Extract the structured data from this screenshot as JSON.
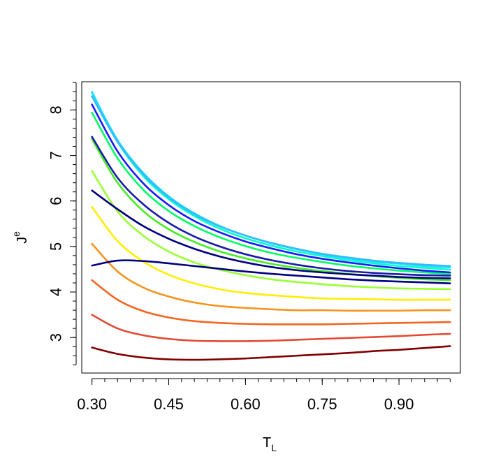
{
  "chart_data": {
    "type": "line",
    "title": "",
    "xlabel": {
      "main": "T",
      "sub": "L"
    },
    "ylabel": {
      "main": "J",
      "sup": "e"
    },
    "xlim": [
      0.28,
      1.02
    ],
    "ylim": [
      2.22,
      8.62
    ],
    "x_ticks": [
      "0.30",
      "0.45",
      "0.60",
      "0.75",
      "0.90"
    ],
    "x_tick_values": [
      0.3,
      0.45,
      0.6,
      0.75,
      0.9
    ],
    "x_minor_step": 0.025,
    "y_ticks": [
      "3",
      "4",
      "5",
      "6",
      "7",
      "8"
    ],
    "y_tick_values": [
      3,
      4,
      5,
      6,
      7,
      8
    ],
    "y_minor_step": 0.2,
    "grid": false,
    "legend": "none",
    "x": [
      0.3,
      0.35,
      0.4,
      0.45,
      0.5,
      0.55,
      0.6,
      0.65,
      0.7,
      0.75,
      0.8,
      0.85,
      0.9,
      0.95,
      1.0
    ],
    "series": [
      {
        "color": "#800000",
        "values": [
          2.78,
          2.64,
          2.56,
          2.52,
          2.51,
          2.52,
          2.54,
          2.57,
          2.6,
          2.63,
          2.66,
          2.7,
          2.73,
          2.77,
          2.81
        ]
      },
      {
        "color": "#e34a33",
        "values": [
          3.5,
          3.2,
          3.05,
          2.97,
          2.93,
          2.92,
          2.92,
          2.93,
          2.95,
          2.97,
          2.99,
          3.01,
          3.03,
          3.06,
          3.08
        ]
      },
      {
        "color": "#f26522",
        "values": [
          4.26,
          3.83,
          3.58,
          3.44,
          3.36,
          3.32,
          3.3,
          3.29,
          3.29,
          3.29,
          3.3,
          3.31,
          3.32,
          3.33,
          3.34
        ]
      },
      {
        "color": "#f7941d",
        "values": [
          5.06,
          4.45,
          4.1,
          3.9,
          3.77,
          3.69,
          3.65,
          3.62,
          3.6,
          3.6,
          3.59,
          3.59,
          3.59,
          3.6,
          3.6
        ]
      },
      {
        "color": "#ffee00",
        "values": [
          5.87,
          5.12,
          4.67,
          4.38,
          4.19,
          4.06,
          3.98,
          3.93,
          3.89,
          3.86,
          3.85,
          3.84,
          3.83,
          3.83,
          3.83
        ]
      },
      {
        "color": "#99ff33",
        "values": [
          6.66,
          5.77,
          5.24,
          4.89,
          4.65,
          4.49,
          4.37,
          4.28,
          4.22,
          4.17,
          4.13,
          4.1,
          4.08,
          4.07,
          4.06
        ]
      },
      {
        "color": "#44ee22",
        "values": [
          7.36,
          6.4,
          5.78,
          5.38,
          5.1,
          4.89,
          4.74,
          4.62,
          4.53,
          4.46,
          4.4,
          4.35,
          4.31,
          4.28,
          4.26
        ]
      },
      {
        "color": "#00ff66",
        "values": [
          7.94,
          6.94,
          6.25,
          5.78,
          5.45,
          5.2,
          5.01,
          4.86,
          4.75,
          4.66,
          4.58,
          4.52,
          4.47,
          4.43,
          4.4
        ]
      },
      {
        "color": "#00ffcc",
        "values": [
          8.4,
          7.3,
          6.55,
          6.04,
          5.67,
          5.39,
          5.18,
          5.02,
          4.89,
          4.79,
          4.7,
          4.63,
          4.57,
          4.53,
          4.49
        ]
      },
      {
        "color": "#22ddff",
        "values": [
          8.38,
          7.34,
          6.62,
          6.1,
          5.73,
          5.45,
          5.24,
          5.07,
          4.94,
          4.83,
          4.74,
          4.67,
          4.62,
          4.57,
          4.54
        ]
      },
      {
        "color": "#33bbff",
        "values": [
          8.3,
          7.3,
          6.59,
          6.08,
          5.71,
          5.44,
          5.24,
          5.08,
          4.95,
          4.84,
          4.76,
          4.69,
          4.64,
          4.6,
          4.57
        ]
      },
      {
        "color": "#1a1aff",
        "values": [
          8.12,
          7.09,
          6.39,
          5.91,
          5.56,
          5.31,
          5.11,
          4.96,
          4.83,
          4.73,
          4.65,
          4.58,
          4.52,
          4.47,
          4.43
        ]
      },
      {
        "color": "#1a1aaa",
        "values": [
          7.41,
          6.51,
          5.93,
          5.52,
          5.22,
          5.0,
          4.83,
          4.7,
          4.6,
          4.52,
          4.46,
          4.42,
          4.39,
          4.37,
          4.36
        ]
      },
      {
        "color": "#000080",
        "values": [
          6.23,
          5.82,
          5.45,
          5.17,
          4.95,
          4.78,
          4.65,
          4.55,
          4.48,
          4.43,
          4.39,
          4.36,
          4.33,
          4.31,
          4.3
        ]
      },
      {
        "color": "#000080",
        "values": [
          4.58,
          4.69,
          4.68,
          4.63,
          4.57,
          4.51,
          4.45,
          4.4,
          4.36,
          4.32,
          4.28,
          4.25,
          4.23,
          4.21,
          4.19
        ]
      }
    ]
  }
}
